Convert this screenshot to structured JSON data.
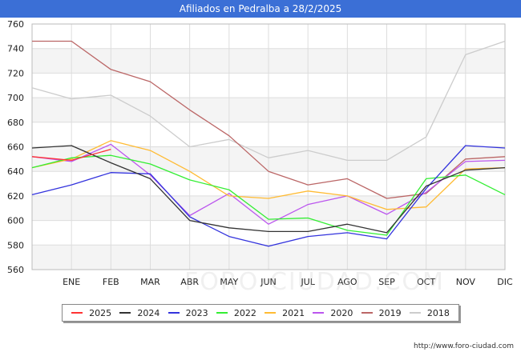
{
  "chart_data": {
    "type": "line",
    "title": "Afiliados en Pedralba a 28/2/2025",
    "categories": [
      "",
      "ENE",
      "FEB",
      "MAR",
      "ABR",
      "MAY",
      "JUN",
      "JUL",
      "AGO",
      "SEP",
      "OCT",
      "NOV",
      "DIC"
    ],
    "ylim": [
      560,
      760
    ],
    "yticks": [
      560,
      580,
      600,
      620,
      640,
      660,
      680,
      700,
      720,
      740,
      760
    ],
    "grid": true,
    "legend_position": "bottom",
    "series": [
      {
        "name": "2025",
        "color": "#ff3333",
        "values": [
          652,
          649,
          658,
          null,
          null,
          null,
          null,
          null,
          null,
          null,
          null,
          null,
          null
        ]
      },
      {
        "name": "2024",
        "color": "#333333",
        "values": [
          659,
          661,
          647,
          634,
          600,
          594,
          591,
          591,
          597,
          590,
          628,
          641,
          643
        ]
      },
      {
        "name": "2023",
        "color": "#3333dd",
        "values": [
          621,
          629,
          639,
          638,
          603,
          587,
          579,
          587,
          590,
          585,
          626,
          661,
          659
        ]
      },
      {
        "name": "2022",
        "color": "#33ee33",
        "values": [
          643,
          651,
          653,
          646,
          633,
          625,
          601,
          602,
          592,
          588,
          634,
          637,
          621
        ]
      },
      {
        "name": "2021",
        "color": "#ffbb33",
        "values": [
          643,
          650,
          665,
          657,
          640,
          620,
          618,
          624,
          620,
          609,
          611,
          642,
          643
        ]
      },
      {
        "name": "2020",
        "color": "#bb55ee",
        "values": [
          652,
          648,
          662,
          637,
          604,
          622,
          597,
          613,
          620,
          605,
          623,
          648,
          649
        ]
      },
      {
        "name": "2019",
        "color": "#bb6666",
        "values": [
          746,
          746,
          723,
          713,
          690,
          669,
          640,
          629,
          634,
          618,
          622,
          650,
          652
        ]
      },
      {
        "name": "2018",
        "color": "#cccccc",
        "values": [
          708,
          699,
          702,
          685,
          660,
          666,
          651,
          657,
          649,
          649,
          668,
          735,
          746
        ]
      }
    ]
  },
  "source": "http://www.foro-ciudad.com",
  "watermark": "FORO-CIUDAD.COM"
}
